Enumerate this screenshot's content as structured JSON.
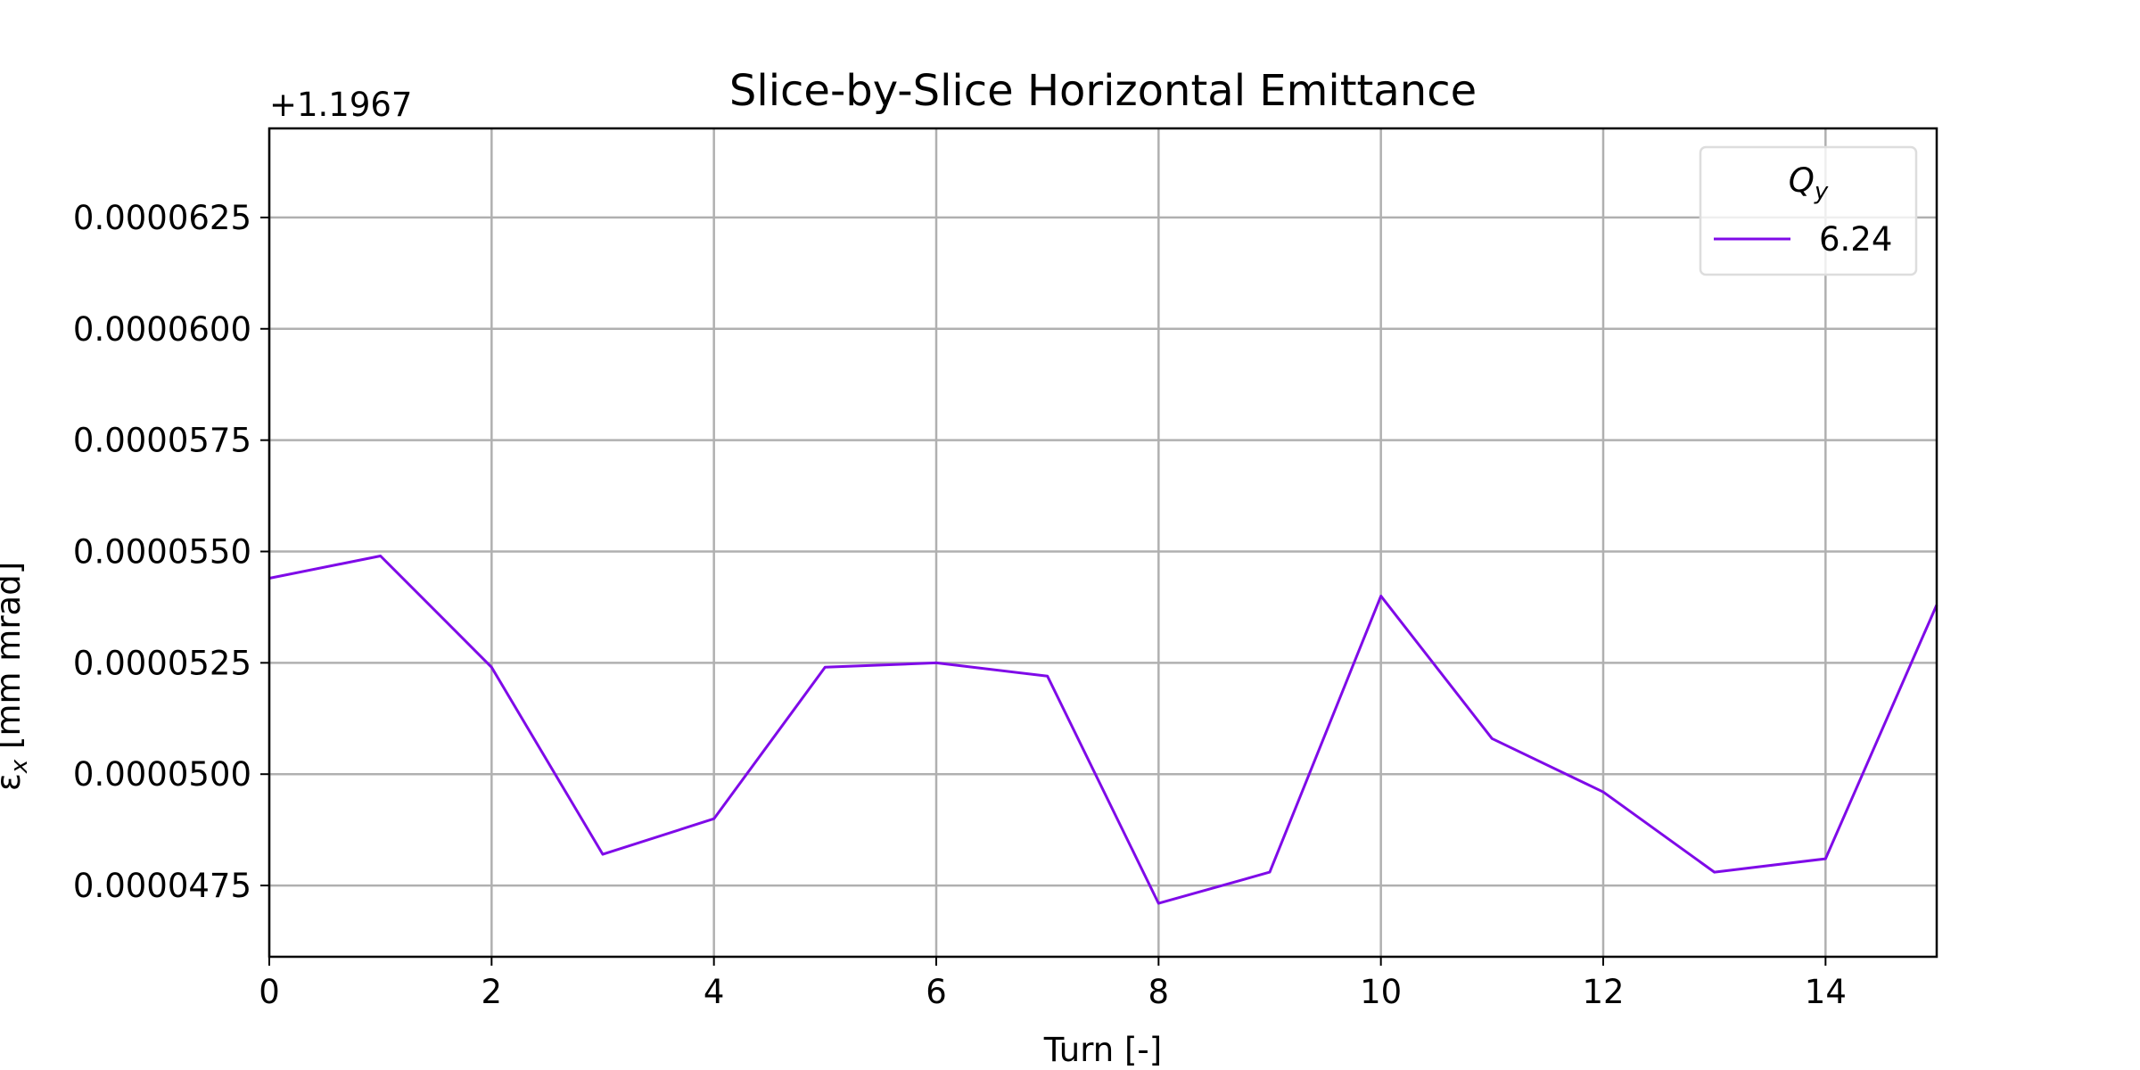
{
  "chart_data": {
    "type": "line",
    "title": "Slice-by-Slice Horizontal Emittance",
    "xlabel": "Turn [-]",
    "ylabel": "εx [mm mrad]",
    "y_offset_label": "+1.1967",
    "xlim": [
      0,
      15
    ],
    "ylim": [
      4.59e-05,
      6.45e-05
    ],
    "x_ticks": [
      0,
      2,
      4,
      6,
      8,
      10,
      12,
      14
    ],
    "y_ticks": [
      4.75e-05,
      5e-05,
      5.25e-05,
      5.5e-05,
      5.75e-05,
      6e-05,
      6.25e-05
    ],
    "y_tick_labels": [
      "0.0000475",
      "0.0000500",
      "0.0000525",
      "0.0000550",
      "0.0000575",
      "0.0000600",
      "0.0000625"
    ],
    "grid": true,
    "legend_title": "Q_y",
    "legend_position": "top-right",
    "series": [
      {
        "name": "6.24",
        "color": "#7f0ae8",
        "x": [
          0,
          1,
          2,
          3,
          4,
          5,
          6,
          7,
          8,
          9,
          10,
          11,
          12,
          13,
          14,
          15
        ],
        "values": [
          5.44e-05,
          5.49e-05,
          5.24e-05,
          4.82e-05,
          4.9e-05,
          5.24e-05,
          5.25e-05,
          5.22e-05,
          4.71e-05,
          4.78e-05,
          5.4e-05,
          5.08e-05,
          4.96e-05,
          4.78e-05,
          4.81e-05,
          5.38e-05
        ]
      }
    ]
  }
}
